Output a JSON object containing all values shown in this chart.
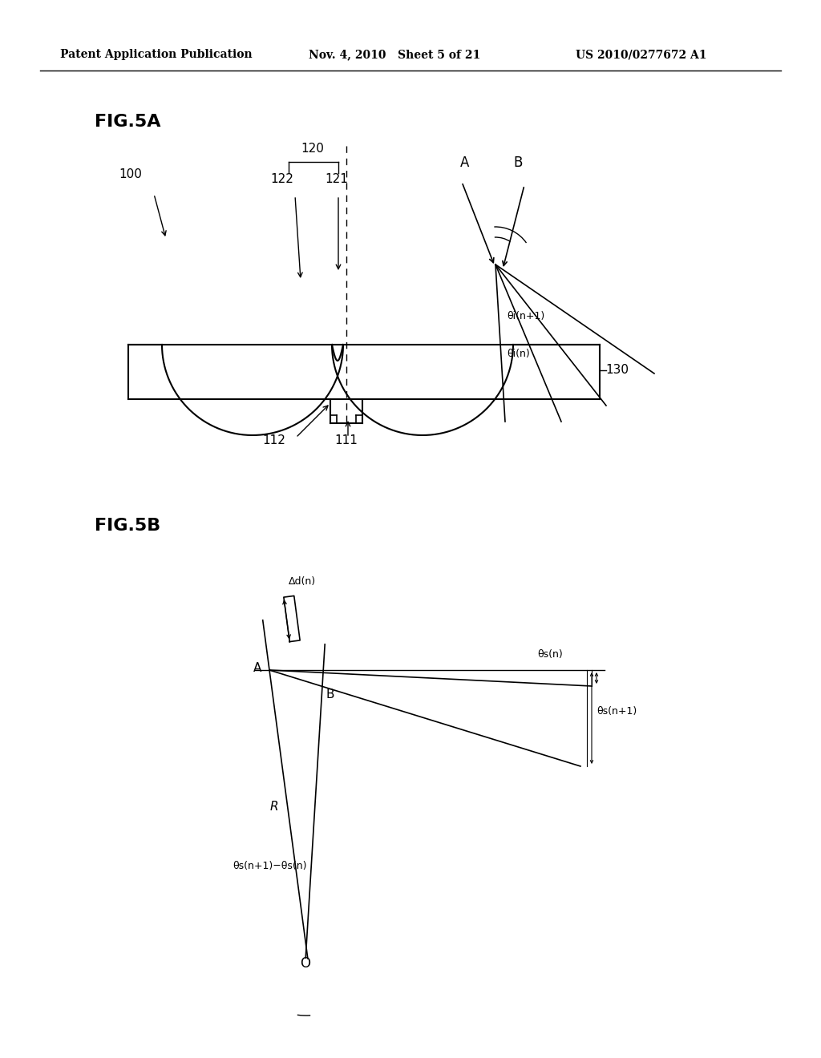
{
  "header_left": "Patent Application Publication",
  "header_mid": "Nov. 4, 2010   Sheet 5 of 21",
  "header_right": "US 2010/0277672 A1",
  "fig5a_label": "FIG.5A",
  "fig5b_label": "FIG.5B",
  "bg_color": "#ffffff",
  "line_color": "#000000",
  "label_100": "100",
  "label_120": "120",
  "label_121": "121",
  "label_122": "122",
  "label_111": "111",
  "label_112": "112",
  "label_130": "130",
  "label_A_5a": "A",
  "label_B_5a": "B",
  "label_theta_in": "θi(n)",
  "label_theta_in1": "θi(n+1)",
  "label_delta_d": "Δd(n)",
  "label_theta_sn": "θs(n)",
  "label_theta_sn1": "θs(n+1)",
  "label_theta_diff": "θs(n+1)−θs(n)",
  "label_R": "R",
  "label_O": "O",
  "label_A_5b": "A",
  "label_B_5b": "B"
}
